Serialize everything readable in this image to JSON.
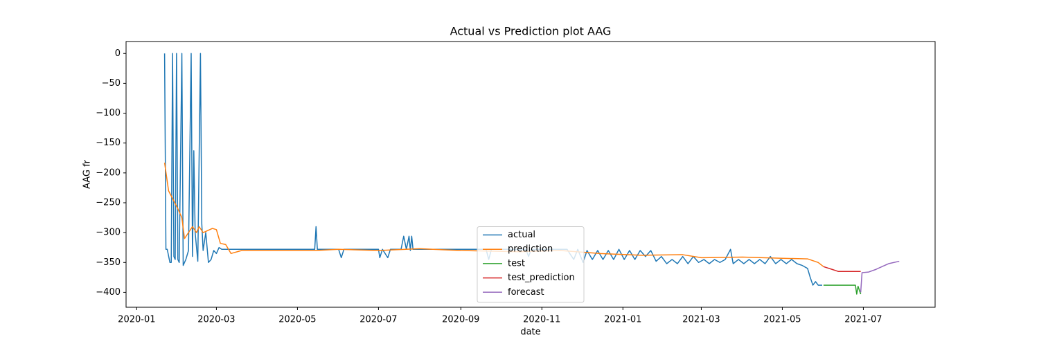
{
  "chart_data": {
    "type": "line",
    "title": "Actual vs Prediction plot AAG",
    "x_label": "date",
    "y_label": "AAG fr",
    "xlim": [
      "2019-12-24",
      "2021-08-24"
    ],
    "xticks": [
      "2020-01",
      "2020-03",
      "2020-05",
      "2020-07",
      "2020-09",
      "2020-11",
      "2021-01",
      "2021-03",
      "2021-05",
      "2021-07"
    ],
    "ylim": [
      -425,
      20
    ],
    "yticks": [
      {
        "value": -400,
        "label": "−400"
      },
      {
        "value": -350,
        "label": "−350"
      },
      {
        "value": -300,
        "label": "−300"
      },
      {
        "value": -250,
        "label": "−250"
      },
      {
        "value": -200,
        "label": "−200"
      },
      {
        "value": -150,
        "label": "−150"
      },
      {
        "value": -100,
        "label": "−100"
      },
      {
        "value": -50,
        "label": "−50"
      },
      0
    ],
    "legend": "lower center",
    "grid": false,
    "series": [
      {
        "name": "actual",
        "color": "#1f77b4",
        "x": [
          "2020-01-22",
          "2020-01-23",
          "2020-01-24",
          "2020-01-26",
          "2020-01-27",
          "2020-01-28",
          "2020-01-29",
          "2020-01-30",
          "2020-01-31",
          "2020-02-01",
          "2020-02-02",
          "2020-02-04",
          "2020-02-05",
          "2020-02-07",
          "2020-02-09",
          "2020-02-11",
          "2020-02-12",
          "2020-02-13",
          "2020-02-14",
          "2020-02-16",
          "2020-02-18",
          "2020-02-19",
          "2020-02-20",
          "2020-02-22",
          "2020-02-24",
          "2020-02-26",
          "2020-02-28",
          "2020-03-01",
          "2020-03-03",
          "2020-03-05",
          "2020-05-14",
          "2020-05-15",
          "2020-05-16",
          "2020-06-01",
          "2020-06-03",
          "2020-06-05",
          "2020-07-01",
          "2020-07-02",
          "2020-07-04",
          "2020-07-08",
          "2020-07-10",
          "2020-07-18",
          "2020-07-20",
          "2020-07-22",
          "2020-07-24",
          "2020-07-25",
          "2020-07-26",
          "2020-07-27",
          "2020-09-20",
          "2020-09-22",
          "2020-09-24",
          "2020-10-20",
          "2020-10-22",
          "2020-10-24",
          "2020-11-20",
          "2020-11-22",
          "2020-11-25",
          "2020-11-28",
          "2020-12-02",
          "2020-12-05",
          "2020-12-09",
          "2020-12-13",
          "2020-12-17",
          "2020-12-21",
          "2020-12-25",
          "2020-12-29",
          "2021-01-02",
          "2021-01-06",
          "2021-01-10",
          "2021-01-14",
          "2021-01-18",
          "2021-01-22",
          "2021-01-26",
          "2021-01-30",
          "2021-02-03",
          "2021-02-07",
          "2021-02-11",
          "2021-02-15",
          "2021-02-19",
          "2021-02-23",
          "2021-02-27",
          "2021-03-03",
          "2021-03-07",
          "2021-03-11",
          "2021-03-15",
          "2021-03-19",
          "2021-03-23",
          "2021-03-25",
          "2021-03-29",
          "2021-04-02",
          "2021-04-06",
          "2021-04-10",
          "2021-04-14",
          "2021-04-18",
          "2021-04-22",
          "2021-04-26",
          "2021-04-30",
          "2021-05-04",
          "2021-05-08",
          "2021-05-12",
          "2021-05-16",
          "2021-05-20",
          "2021-05-22",
          "2021-05-24",
          "2021-05-26",
          "2021-05-28",
          "2021-05-31"
        ],
        "values": [
          0,
          -328,
          -328,
          -350,
          -350,
          0,
          -340,
          -345,
          0,
          -345,
          -350,
          0,
          -355,
          -345,
          -330,
          0,
          -340,
          -163,
          -300,
          -348,
          0,
          -285,
          -330,
          -300,
          -350,
          -345,
          -330,
          -335,
          -325,
          -328,
          -328,
          -290,
          -328,
          -328,
          -342,
          -328,
          -328,
          -342,
          -328,
          -342,
          -328,
          -328,
          -306,
          -328,
          -306,
          -330,
          -306,
          -328,
          -328,
          -345,
          -328,
          -328,
          -340,
          -328,
          -328,
          -335,
          -345,
          -328,
          -350,
          -330,
          -345,
          -330,
          -345,
          -330,
          -345,
          -328,
          -345,
          -330,
          -345,
          -330,
          -340,
          -330,
          -348,
          -340,
          -352,
          -345,
          -352,
          -340,
          -352,
          -340,
          -350,
          -345,
          -352,
          -345,
          -350,
          -345,
          -328,
          -352,
          -345,
          -352,
          -345,
          -352,
          -345,
          -352,
          -340,
          -352,
          -345,
          -352,
          -345,
          -352,
          -355,
          -360,
          -375,
          -388,
          -382,
          -388,
          -388
        ]
      },
      {
        "name": "prediction",
        "color": "#ff7f0e",
        "x": [
          "2020-01-22",
          "2020-01-25",
          "2020-02-01",
          "2020-02-04",
          "2020-02-06",
          "2020-02-12",
          "2020-02-15",
          "2020-02-17",
          "2020-02-20",
          "2020-02-27",
          "2020-03-01",
          "2020-03-04",
          "2020-03-08",
          "2020-03-12",
          "2020-03-20",
          "2020-05-15",
          "2020-06-01",
          "2020-07-01",
          "2020-08-01",
          "2020-09-01",
          "2020-10-15",
          "2020-11-15",
          "2020-12-15",
          "2021-01-15",
          "2021-02-15",
          "2021-03-01",
          "2021-04-01",
          "2021-05-01",
          "2021-05-20",
          "2021-05-28",
          "2021-06-01"
        ],
        "values": [
          -183,
          -230,
          -260,
          -275,
          -310,
          -290,
          -300,
          -290,
          -300,
          -293,
          -295,
          -318,
          -320,
          -335,
          -330,
          -330,
          -328,
          -330,
          -327,
          -330,
          -332,
          -330,
          -335,
          -338,
          -337,
          -342,
          -341,
          -343,
          -344,
          -350,
          -357
        ]
      },
      {
        "name": "test",
        "color": "#2ca02c",
        "x": [
          "2021-06-01",
          "2021-06-25",
          "2021-06-26",
          "2021-06-27",
          "2021-06-29"
        ],
        "values": [
          -388,
          -388,
          -403,
          -390,
          -403
        ]
      },
      {
        "name": "test_prediction",
        "color": "#d62728",
        "x": [
          "2021-06-01",
          "2021-06-08",
          "2021-06-12",
          "2021-06-29"
        ],
        "values": [
          -357,
          -362,
          -365,
          -365
        ]
      },
      {
        "name": "forecast",
        "color": "#9467bd",
        "x": [
          "2021-06-29",
          "2021-06-30",
          "2021-07-05",
          "2021-07-10",
          "2021-07-15",
          "2021-07-20",
          "2021-07-28"
        ],
        "values": [
          -400,
          -367,
          -366,
          -362,
          -357,
          -352,
          -348
        ]
      }
    ]
  }
}
